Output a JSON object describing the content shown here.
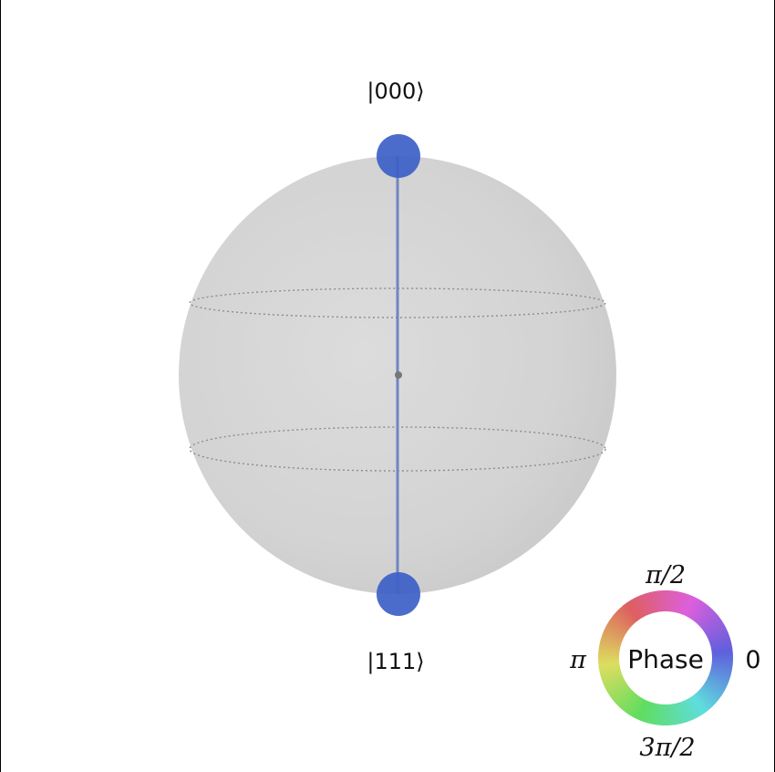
{
  "diagram": {
    "type": "qsphere",
    "states": [
      {
        "id": "top",
        "label": "|000⟩",
        "color": "#3d5fc8"
      },
      {
        "id": "bottom",
        "label": "|111⟩",
        "color": "#3d5fc8"
      }
    ],
    "colors": {
      "sphere": "#d6d6d6",
      "sphere_edge": "#c9c9c9",
      "vector": "#6f86c2",
      "latitude": "#8c8c8c",
      "center": "#777777"
    }
  },
  "phase_wheel": {
    "title": "Phase",
    "labels": {
      "top": "π/2",
      "left": "π",
      "right": "0",
      "bottom": "3π/2"
    }
  }
}
